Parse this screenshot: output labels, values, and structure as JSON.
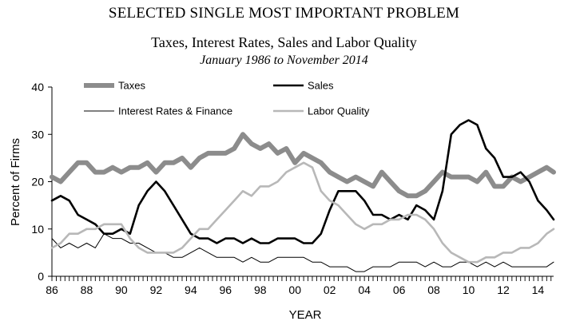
{
  "header": {
    "title": "SELECTED SINGLE MOST IMPORTANT PROBLEM",
    "subtitle": "Taxes, Interest Rates, Sales and Labor Quality",
    "date_range": "January 1986 to November 2014"
  },
  "chart_data": {
    "type": "line",
    "title": "SELECTED SINGLE MOST IMPORTANT PROBLEM",
    "subtitle": "Taxes, Interest Rates, Sales and Labor Quality",
    "xlabel": "YEAR",
    "ylabel": "Percent of Firms",
    "xlim": [
      1986,
      2014.9
    ],
    "ylim": [
      0,
      40
    ],
    "yticks": [
      0,
      10,
      20,
      30,
      40
    ],
    "xtick_labels": [
      "86",
      "88",
      "90",
      "92",
      "94",
      "96",
      "98",
      "00",
      "02",
      "04",
      "06",
      "08",
      "10",
      "12",
      "14"
    ],
    "grid": false,
    "legend": {
      "position": "top",
      "columns": 2
    },
    "series": [
      {
        "name": "Taxes",
        "color": "#8c8c8c",
        "style": "thick",
        "x": [
          1986,
          1986.5,
          1987,
          1987.5,
          1988,
          1988.5,
          1989,
          1989.5,
          1990,
          1990.5,
          1991,
          1991.5,
          1992,
          1992.5,
          1993,
          1993.5,
          1994,
          1994.5,
          1995,
          1995.5,
          1996,
          1996.5,
          1997,
          1997.5,
          1998,
          1998.5,
          1999,
          1999.5,
          2000,
          2000.5,
          2001,
          2001.5,
          2002,
          2002.5,
          2003,
          2003.5,
          2004,
          2004.5,
          2005,
          2005.5,
          2006,
          2006.5,
          2007,
          2007.5,
          2008,
          2008.5,
          2009,
          2009.5,
          2010,
          2010.5,
          2011,
          2011.5,
          2012,
          2012.5,
          2013,
          2013.5,
          2014,
          2014.5,
          2014.9
        ],
        "y": [
          21,
          20,
          22,
          24,
          24,
          22,
          22,
          23,
          22,
          23,
          23,
          24,
          22,
          24,
          24,
          25,
          23,
          25,
          26,
          26,
          26,
          27,
          30,
          28,
          27,
          28,
          26,
          27,
          24,
          26,
          25,
          24,
          22,
          21,
          20,
          21,
          20,
          19,
          22,
          20,
          18,
          17,
          17,
          18,
          20,
          22,
          21,
          21,
          21,
          20,
          22,
          19,
          19,
          21,
          20,
          21,
          22,
          23,
          22
        ]
      },
      {
        "name": "Sales",
        "color": "#000000",
        "style": "medium",
        "x": [
          1986,
          1986.5,
          1987,
          1987.5,
          1988,
          1988.5,
          1989,
          1989.5,
          1990,
          1990.5,
          1991,
          1991.5,
          1992,
          1992.5,
          1993,
          1993.5,
          1994,
          1994.5,
          1995,
          1995.5,
          1996,
          1996.5,
          1997,
          1997.5,
          1998,
          1998.5,
          1999,
          1999.5,
          2000,
          2000.5,
          2001,
          2001.5,
          2002,
          2002.5,
          2003,
          2003.5,
          2004,
          2004.5,
          2005,
          2005.5,
          2006,
          2006.5,
          2007,
          2007.5,
          2008,
          2008.5,
          2009,
          2009.5,
          2010,
          2010.5,
          2011,
          2011.5,
          2012,
          2012.5,
          2013,
          2013.5,
          2014,
          2014.5,
          2014.9
        ],
        "y": [
          16,
          17,
          16,
          13,
          12,
          11,
          9,
          9,
          10,
          9,
          15,
          18,
          20,
          18,
          15,
          12,
          9,
          8,
          8,
          7,
          8,
          8,
          7,
          8,
          7,
          7,
          8,
          8,
          8,
          7,
          7,
          9,
          14,
          18,
          18,
          18,
          16,
          13,
          13,
          12,
          13,
          12,
          15,
          14,
          12,
          18,
          30,
          32,
          33,
          32,
          27,
          25,
          21,
          21,
          22,
          20,
          16,
          14,
          12
        ]
      },
      {
        "name": "Interest Rates & Finance",
        "color": "#000000",
        "style": "thin",
        "x": [
          1986,
          1986.5,
          1987,
          1987.5,
          1988,
          1988.5,
          1989,
          1989.5,
          1990,
          1990.5,
          1991,
          1991.5,
          1992,
          1992.5,
          1993,
          1993.5,
          1994,
          1994.5,
          1995,
          1995.5,
          1996,
          1996.5,
          1997,
          1997.5,
          1998,
          1998.5,
          1999,
          1999.5,
          2000,
          2000.5,
          2001,
          2001.5,
          2002,
          2002.5,
          2003,
          2003.5,
          2004,
          2004.5,
          2005,
          2005.5,
          2006,
          2006.5,
          2007,
          2007.5,
          2008,
          2008.5,
          2009,
          2009.5,
          2010,
          2010.5,
          2011,
          2011.5,
          2012,
          2012.5,
          2013,
          2013.5,
          2014,
          2014.5,
          2014.9
        ],
        "y": [
          8,
          6,
          7,
          6,
          7,
          6,
          9,
          8,
          8,
          7,
          7,
          6,
          5,
          5,
          4,
          4,
          5,
          6,
          5,
          4,
          4,
          4,
          3,
          4,
          3,
          3,
          4,
          4,
          4,
          4,
          3,
          3,
          2,
          2,
          2,
          1,
          1,
          2,
          2,
          2,
          3,
          3,
          3,
          2,
          3,
          2,
          2,
          3,
          3,
          2,
          3,
          2,
          3,
          2,
          2,
          2,
          2,
          2,
          3
        ]
      },
      {
        "name": "Labor Quality",
        "color": "#b8b8b8",
        "style": "medium",
        "x": [
          1986,
          1986.5,
          1987,
          1987.5,
          1988,
          1988.5,
          1989,
          1989.5,
          1990,
          1990.5,
          1991,
          1991.5,
          1992,
          1992.5,
          1993,
          1993.5,
          1994,
          1994.5,
          1995,
          1995.5,
          1996,
          1996.5,
          1997,
          1997.5,
          1998,
          1998.5,
          1999,
          1999.5,
          2000,
          2000.5,
          2001,
          2001.5,
          2002,
          2002.5,
          2003,
          2003.5,
          2004,
          2004.5,
          2005,
          2005.5,
          2006,
          2006.5,
          2007,
          2007.5,
          2008,
          2008.5,
          2009,
          2009.5,
          2010,
          2010.5,
          2011,
          2011.5,
          2012,
          2012.5,
          2013,
          2013.5,
          2014,
          2014.5,
          2014.9
        ],
        "y": [
          6,
          7,
          9,
          9,
          10,
          10,
          11,
          11,
          11,
          8,
          6,
          5,
          5,
          5,
          5,
          6,
          8,
          10,
          10,
          12,
          14,
          16,
          18,
          17,
          19,
          19,
          20,
          22,
          23,
          24,
          23,
          18,
          16,
          15,
          13,
          11,
          10,
          11,
          11,
          12,
          12,
          13,
          13,
          12,
          10,
          7,
          5,
          4,
          3,
          3,
          4,
          4,
          5,
          5,
          6,
          6,
          7,
          9,
          10
        ]
      }
    ]
  }
}
